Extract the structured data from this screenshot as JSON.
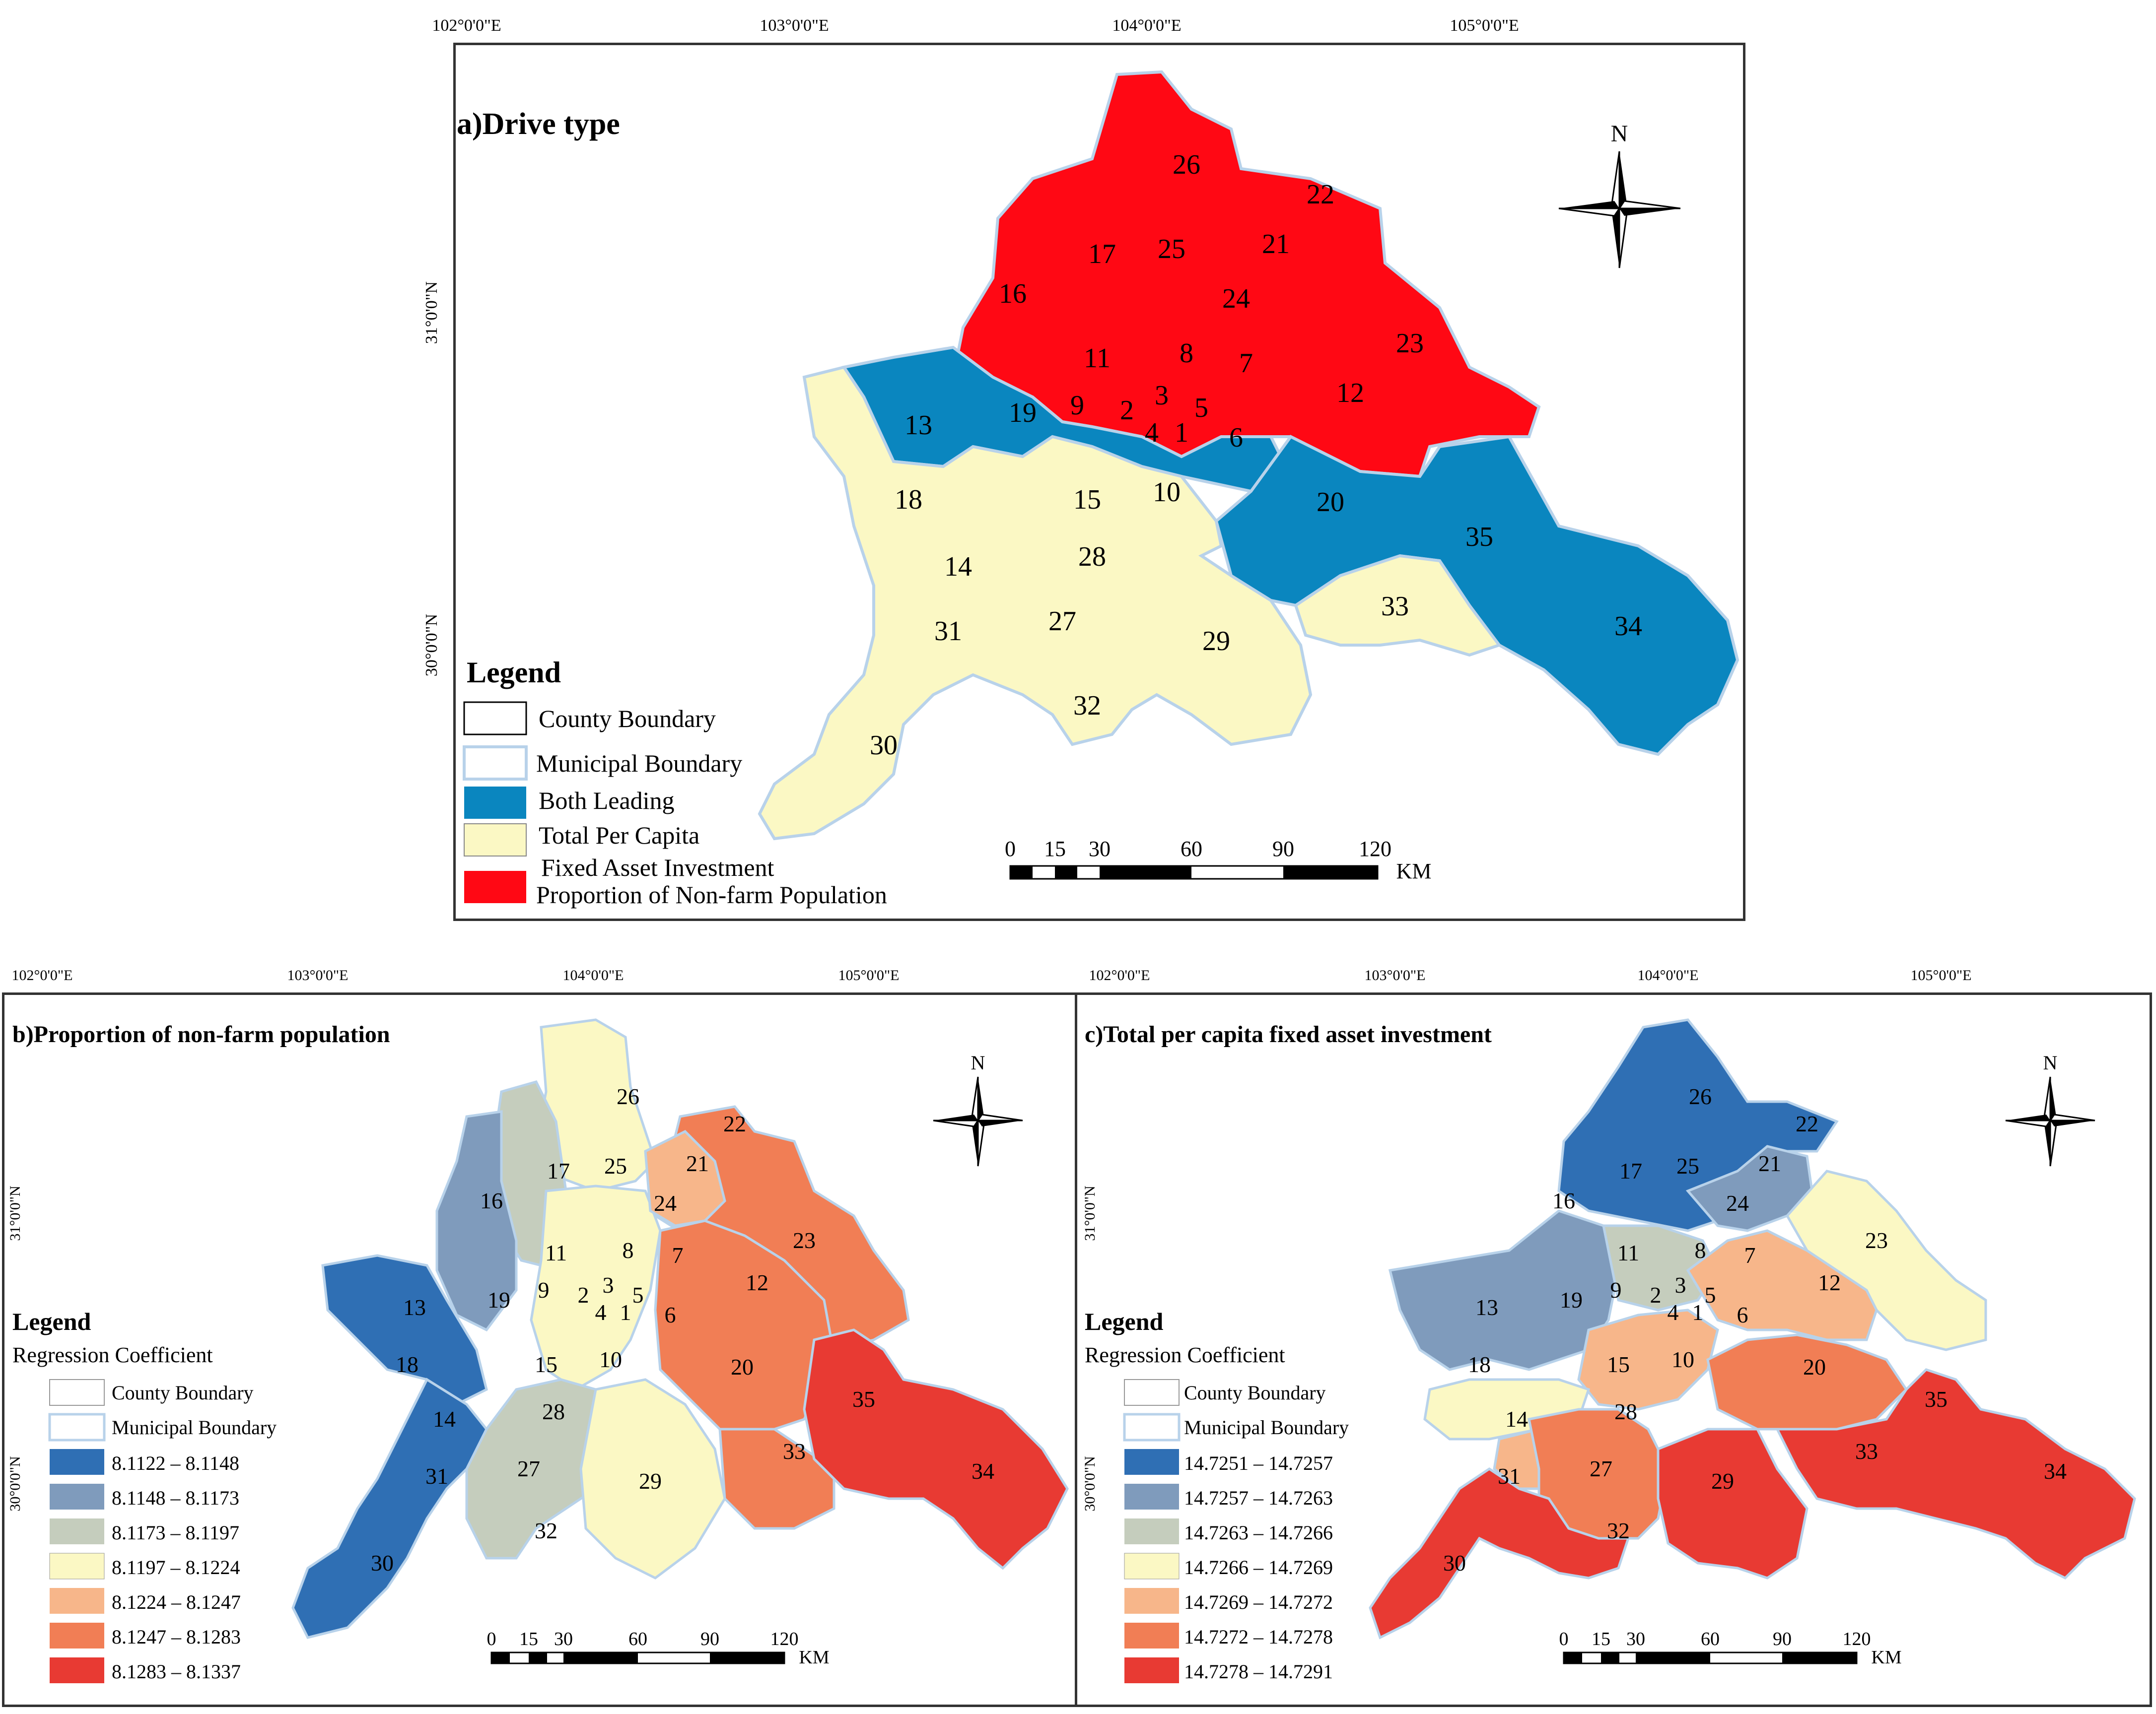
{
  "panel_a": {
    "title": "a)Drive type",
    "lon_labels": [
      "102°0'0\"E",
      "103°0'0\"E",
      "104°0'0\"E",
      "105°0'0\"E"
    ],
    "lat_labels": [
      "31°0'0\"N",
      "30°0'0\"N"
    ],
    "north": "N",
    "legend_title": "Legend",
    "legend": [
      {
        "label": "County Boundary",
        "color": "#ffffff"
      },
      {
        "label": "Municipal Boundary",
        "color": "#ffffff"
      },
      {
        "label": "Both Leading",
        "color": "#0a86bf"
      },
      {
        "label": "Total Per Capita",
        "color": "#fbf8c4"
      },
      {
        "label": "Fixed Asset Investment",
        "color": "#ff0814"
      },
      {
        "label": "Proportion of Non-farm Population",
        "color": "#ff0814"
      }
    ],
    "scale": {
      "ticks": [
        "0",
        "15",
        "30",
        "60",
        "90",
        "120"
      ],
      "unit": "KM"
    }
  },
  "panel_b": {
    "title": "b)Proportion of non-farm population",
    "lon_labels": [
      "102°0'0\"E",
      "103°0'0\"E",
      "104°0'0\"E",
      "105°0'0\"E"
    ],
    "lat_labels": [
      "31°0'0\"N",
      "30°0'0\"N"
    ],
    "north": "N",
    "legend_title": "Legend",
    "legend_subtitle": "Regression Coefficient",
    "boundaries": [
      "County Boundary",
      "Municipal Boundary"
    ],
    "classes": [
      {
        "label": "8.1122 – 8.1148",
        "color": "#2f6fb4"
      },
      {
        "label": "8.1148 – 8.1173",
        "color": "#7f9bbc"
      },
      {
        "label": "8.1173 – 8.1197",
        "color": "#c5cdbd"
      },
      {
        "label": "8.1197 – 8.1224",
        "color": "#fbf8c4"
      },
      {
        "label": "8.1224 – 8.1247",
        "color": "#f7b68a"
      },
      {
        "label": "8.1247 – 8.1283",
        "color": "#f17e55"
      },
      {
        "label": "8.1283 – 8.1337",
        "color": "#e83a33"
      }
    ],
    "scale": {
      "ticks": [
        "0",
        "15",
        "30",
        "60",
        "90",
        "120"
      ],
      "unit": "KM"
    }
  },
  "panel_c": {
    "title": "c)Total per capita fixed asset investment",
    "lon_labels": [
      "102°0'0\"E",
      "103°0'0\"E",
      "104°0'0\"E",
      "105°0'0\"E"
    ],
    "lat_labels": [
      "31°0'0\"N",
      "30°0'0\"N"
    ],
    "north": "N",
    "legend_title": "Legend",
    "legend_subtitle": "Regression Coefficient",
    "boundaries": [
      "County Boundary",
      "Municipal Boundary"
    ],
    "classes": [
      {
        "label": "14.7251 – 14.7257",
        "color": "#2f6fb4"
      },
      {
        "label": "14.7257 – 14.7263",
        "color": "#7f9bbc"
      },
      {
        "label": "14.7263 – 14.7266",
        "color": "#c5cdbd"
      },
      {
        "label": "14.7266 – 14.7269",
        "color": "#fbf8c4"
      },
      {
        "label": "14.7269 – 14.7272",
        "color": "#f7b68a"
      },
      {
        "label": "14.7272 – 14.7278",
        "color": "#f17e55"
      },
      {
        "label": "14.7278 – 14.7291",
        "color": "#e83a33"
      }
    ],
    "scale": {
      "ticks": [
        "0",
        "15",
        "30",
        "60",
        "90",
        "120"
      ],
      "unit": "KM"
    }
  },
  "map_regions": {
    "region_a_fill": {
      "red": "#ff0814",
      "blue": "#0a86bf",
      "yellow": "#fbf8c4"
    },
    "county_labels": [
      "1",
      "2",
      "3",
      "4",
      "5",
      "6",
      "7",
      "8",
      "9",
      "10",
      "11",
      "12",
      "13",
      "14",
      "15",
      "16",
      "17",
      "18",
      "19",
      "20",
      "21",
      "22",
      "23",
      "24",
      "25",
      "26",
      "27",
      "28",
      "29",
      "30",
      "31",
      "32",
      "33",
      "34",
      "35"
    ]
  }
}
